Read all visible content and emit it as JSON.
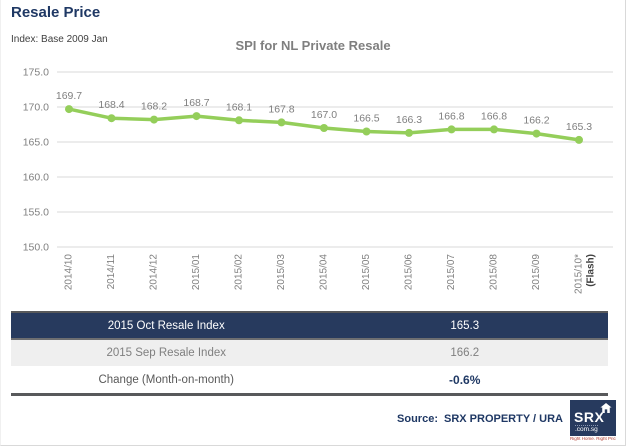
{
  "page": {
    "title": "Resale Price",
    "subtitle": "Index: Base 2009 Jan"
  },
  "chart_data": {
    "type": "line",
    "title": "SPI for NL Private Resale",
    "categories": [
      "2014/10",
      "2014/11",
      "2014/12",
      "2015/01",
      "2015/02",
      "2015/03",
      "2015/04",
      "2015/05",
      "2015/06",
      "2015/07",
      "2015/08",
      "2015/09",
      "2015/10*"
    ],
    "last_category_note": "(Flash)",
    "series": [
      {
        "name": "SPI for NL Private Resale",
        "values": [
          169.7,
          168.4,
          168.2,
          168.7,
          168.1,
          167.8,
          167.0,
          166.5,
          166.3,
          166.8,
          166.8,
          166.2,
          165.3
        ]
      }
    ],
    "point_labels": [
      "169.7",
      "168.4",
      "168.2",
      "168.7",
      "168.1",
      "167.8",
      "167.0",
      "166.5",
      "166.3",
      "166.8",
      "166.8",
      "166.2",
      "165.3"
    ],
    "ylim": [
      150,
      175
    ],
    "ytick_labels": [
      "175.0",
      "170.0",
      "165.0",
      "160.0",
      "155.0",
      "150.0"
    ],
    "grid": true,
    "legend": "none",
    "line_color": "#94ce5a",
    "grid_color": "#d9d9d9",
    "axis_color": "#808080",
    "label_color": "#7f7f7f",
    "flash_note_color": "#404040"
  },
  "summary_table": {
    "rows": [
      {
        "label": "2015 Oct Resale Index",
        "value": "165.3"
      },
      {
        "label": "2015 Sep Resale Index",
        "value": "166.2"
      },
      {
        "label": "Change (Month-on-month)",
        "value": "-0.6%"
      }
    ]
  },
  "footer": {
    "source_label": "Source:",
    "source_value": "SRX PROPERTY / URA",
    "logo": {
      "brand": "SRX",
      "domain": ".com.sg",
      "tagline": "Right Home. Right Price"
    }
  },
  "colors": {
    "navy": "#1f3864",
    "table_header_bg": "#273a5e",
    "row_alt_bg": "#efefef"
  }
}
